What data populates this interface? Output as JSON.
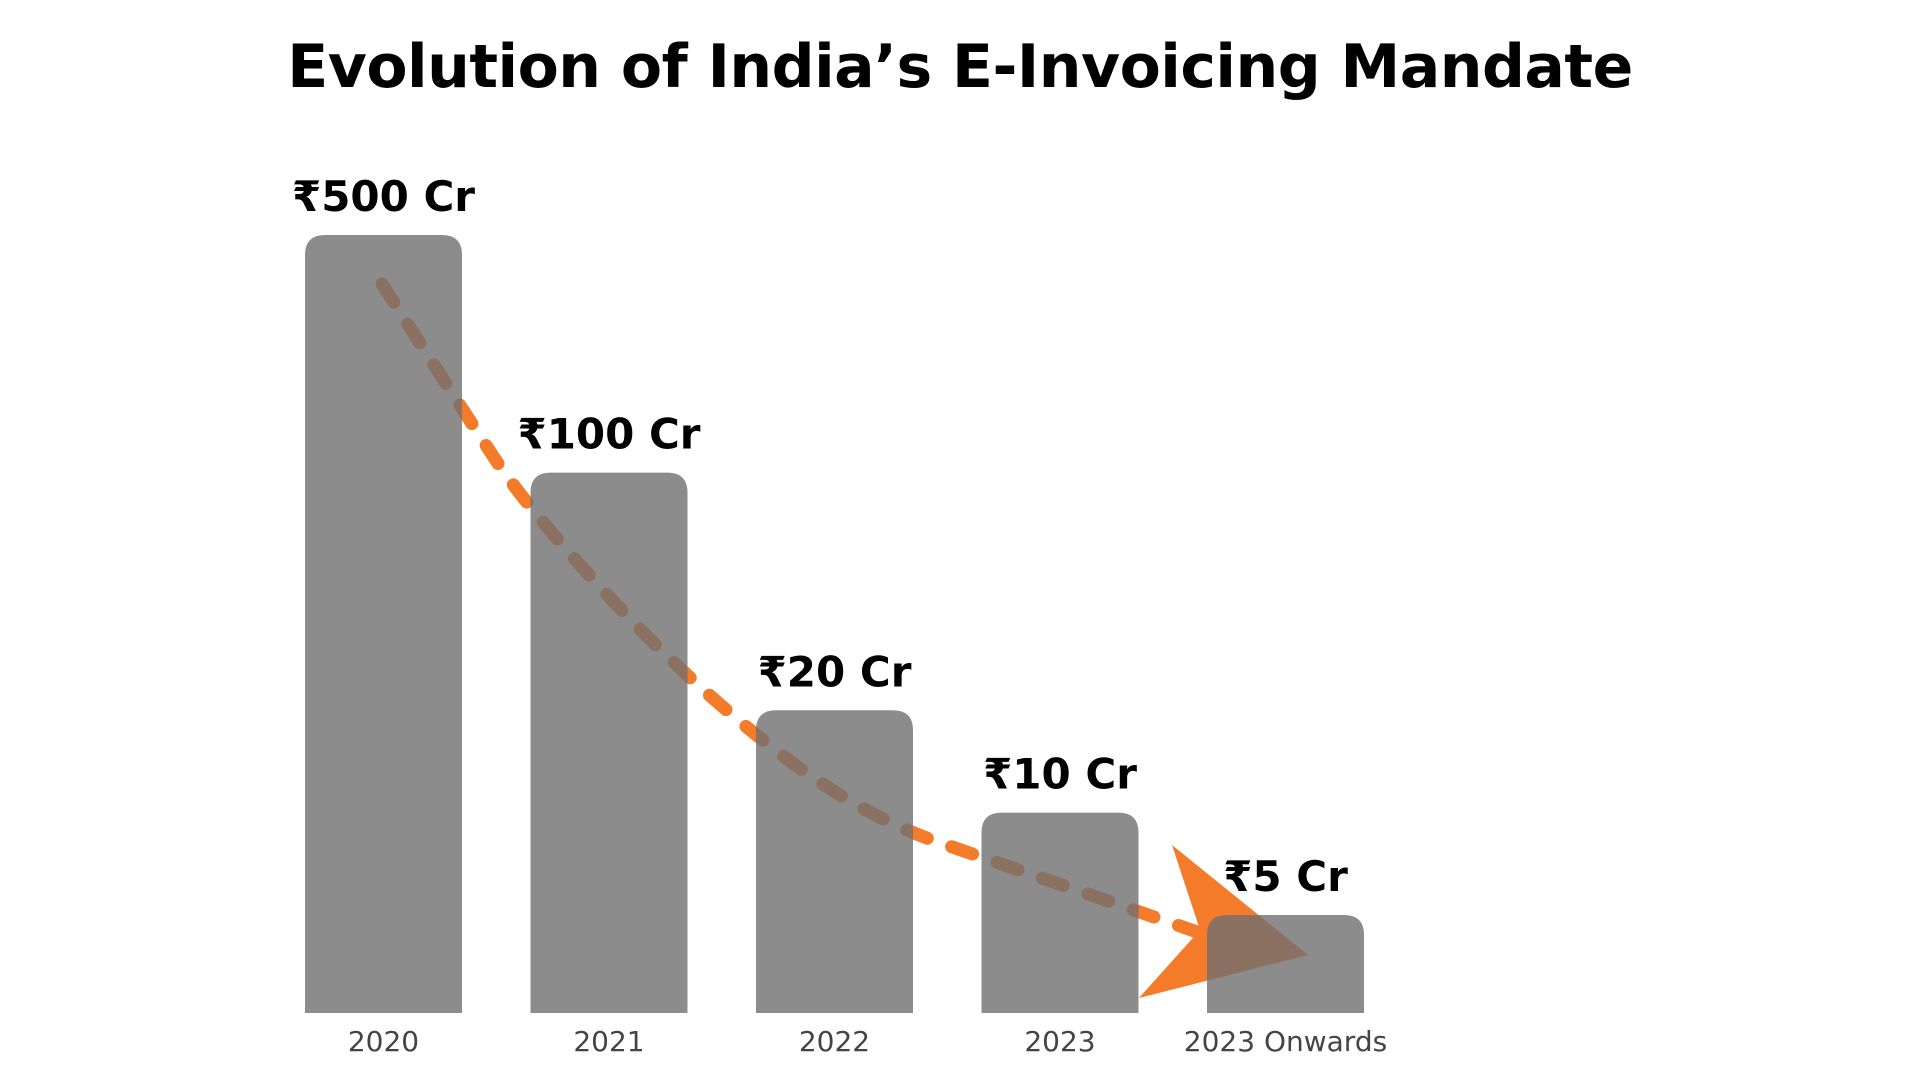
{
  "chart_data": {
    "type": "bar",
    "title": "Evolution of India’s E-Invoicing Mandate",
    "xlabel": "",
    "ylabel": "",
    "categories": [
      "2020",
      "2021",
      "2022",
      "2023",
      "2023 Onwards"
    ],
    "values": [
      500,
      100,
      20,
      10,
      5
    ],
    "unit": "₹ Cr",
    "data_labels": [
      "₹500 Cr",
      "₹100 Cr",
      "₹20 Cr",
      "₹10 Cr",
      "₹5 Cr"
    ],
    "grid": false,
    "legend": "none",
    "annotation": "dashed downward trend arrow",
    "colors": {
      "bar": "#8c8c8c",
      "trend_arrow": "#f47b2a",
      "axis_label": "#444444",
      "text": "#000000"
    }
  }
}
